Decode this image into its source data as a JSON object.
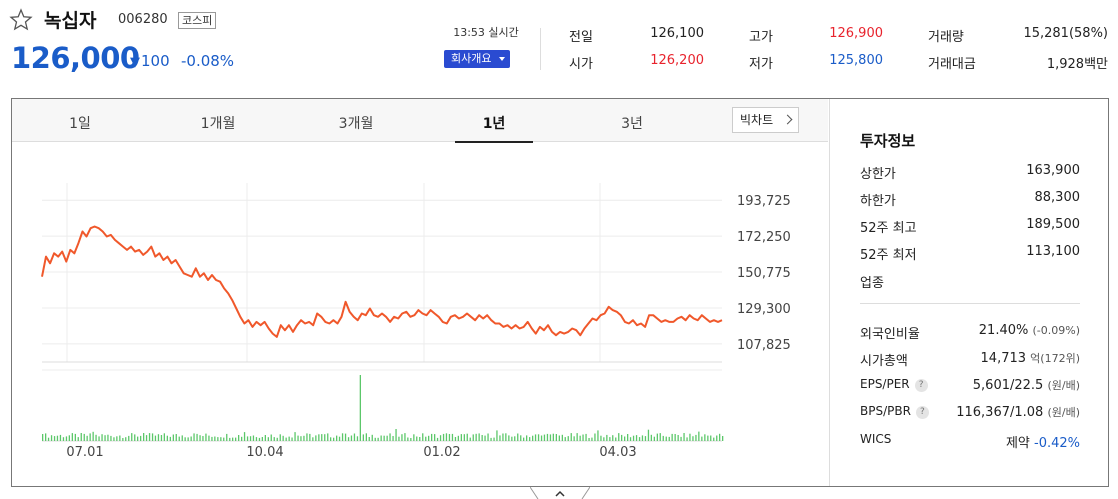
{
  "stock": {
    "name": "녹십자",
    "code": "006280",
    "market": "코스피",
    "price": "126,000",
    "change": "100",
    "change_rate": "-0.08%",
    "time": "13:53 실시간",
    "company_button": "회사개요"
  },
  "quote": {
    "prev_close_label": "전일",
    "prev_close": "126,100",
    "open_label": "시가",
    "open": "126,200",
    "high_label": "고가",
    "high": "126,900",
    "low_label": "저가",
    "low": "125,800",
    "volume_label": "거래량",
    "volume": "15,281(58%)",
    "amount_label": "거래대금",
    "amount": "1,928백만"
  },
  "tabs": [
    "1일",
    "1개월",
    "3개월",
    "1년",
    "3년"
  ],
  "active_tab": "1년",
  "bigchart_label": "빅차트",
  "invest": {
    "title": "투자정보",
    "upper_limit_label": "상한가",
    "upper_limit": "163,900",
    "lower_limit_label": "하한가",
    "lower_limit": "88,300",
    "high52_label": "52주 최고",
    "high52": "189,500",
    "low52_label": "52주 최저",
    "low52": "113,100",
    "sector_label": "업종",
    "foreign_label": "외국인비율",
    "foreign": "21.40%",
    "foreign_sub": "(-0.09%)",
    "mktcap_label": "시가총액",
    "mktcap": "14,713",
    "mktcap_unit": "억",
    "mktcap_sub": "(172위)",
    "eps_label": "EPS/PER",
    "eps": "5,601/22.5",
    "eps_unit": "(원/배)",
    "bps_label": "BPS/PBR",
    "bps": "116,367/1.08",
    "bps_unit": "(원/배)",
    "wics_label": "WICS",
    "wics": "제약",
    "wics_rate": "-0.42%"
  },
  "colors": {
    "up": "#e8232d",
    "down": "#1a5cc8",
    "line": "#f0582b",
    "volume": "#5cc76a",
    "button": "#2a4bd1"
  },
  "chart_data": {
    "type": "line",
    "y_ticks": [
      "193,725",
      "172,250",
      "150,775",
      "129,300",
      "107,825"
    ],
    "x_ticks": [
      "07.01",
      "10.04",
      "01.02",
      "04.03"
    ],
    "ylim": [
      97000,
      204000
    ],
    "grid": true,
    "series": [
      {
        "values": [
          148000,
          160000,
          156000,
          162000,
          160000,
          163000,
          157000,
          164000,
          162000,
          168000,
          175000,
          172000,
          177000,
          178000,
          177000,
          175000,
          172000,
          173000,
          170000,
          168000,
          166000,
          164000,
          166000,
          163000,
          164000,
          161000,
          163000,
          166000,
          160000,
          162000,
          158000,
          160000,
          156000,
          158000,
          154000,
          150000,
          149000,
          148000,
          153000,
          148000,
          150000,
          146000,
          149000,
          146000,
          145000,
          141000,
          138000,
          134000,
          129000,
          124000,
          120000,
          122000,
          118000,
          121000,
          119000,
          121000,
          117000,
          114000,
          112000,
          119000,
          116000,
          119000,
          115000,
          119000,
          122000,
          120000,
          121000,
          119000,
          126000,
          124000,
          121000,
          120000,
          122000,
          120000,
          124000,
          133000,
          127000,
          124000,
          122000,
          126000,
          125000,
          129000,
          125000,
          124000,
          126000,
          124000,
          121000,
          124000,
          123000,
          126000,
          127000,
          124000,
          125000,
          128000,
          126000,
          125000,
          128000,
          126000,
          124000,
          121000,
          120000,
          124000,
          125000,
          123000,
          124000,
          126000,
          124000,
          122000,
          125000,
          123000,
          125000,
          122000,
          120000,
          120000,
          118000,
          119000,
          117000,
          119000,
          117000,
          118000,
          121000,
          117000,
          114000,
          118000,
          116000,
          119000,
          115000,
          113000,
          115000,
          114000,
          115000,
          117000,
          116000,
          113000,
          117000,
          120000,
          123000,
          122000,
          125000,
          126000,
          130000,
          128000,
          127000,
          125000,
          121000,
          120000,
          122000,
          119000,
          120000,
          118000,
          125000,
          125000,
          123000,
          121000,
          122000,
          121000,
          121000,
          123000,
          124000,
          122000,
          125000,
          123000,
          122000,
          125000,
          123000,
          121000,
          122000,
          121000,
          122000
        ]
      }
    ],
    "volume_spike_label": ""
  }
}
